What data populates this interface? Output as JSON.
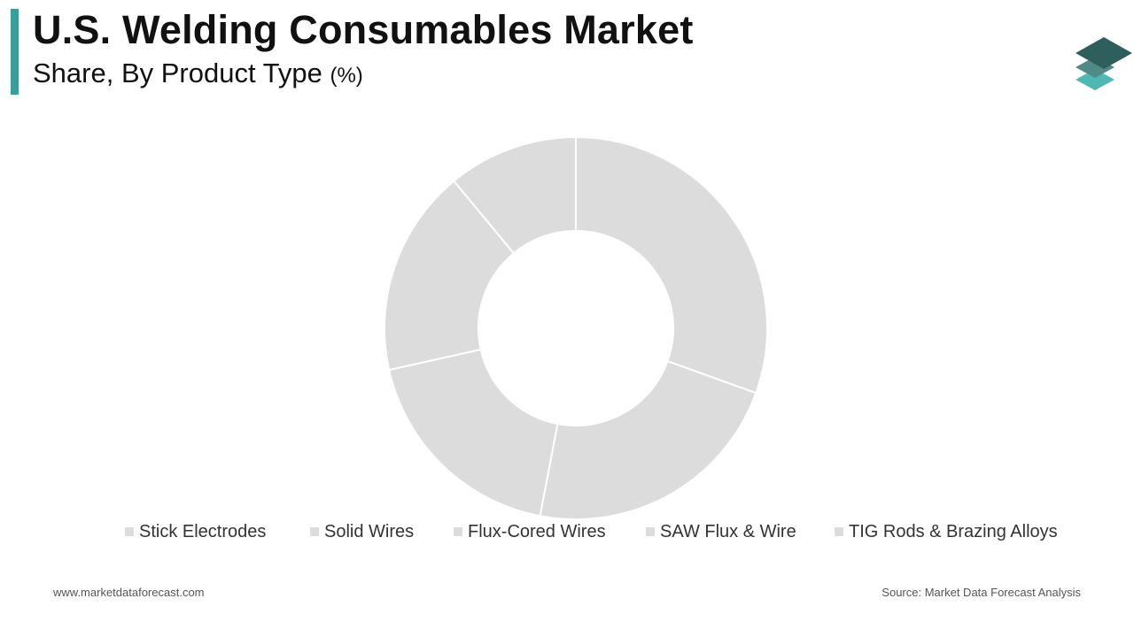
{
  "header": {
    "title": "U.S. Welding Consumables Market",
    "subtitle": "Share, By Product Type",
    "subtitle_unit": "(%)"
  },
  "colors": {
    "accent": "#3a9e9a",
    "slice": "#dcdcdc",
    "slice_border": "#ffffff",
    "legend_swatch": "#dcdcdc",
    "logo_top": "#2f5f5c",
    "logo_mid": "#4f8a86",
    "logo_bottom": "#4fb8b2"
  },
  "logo": {
    "icon": "stacked-layers-icon"
  },
  "chart_data": {
    "type": "pie",
    "donut": true,
    "title": "",
    "categories": [
      "Stick Electrodes",
      "Solid Wires",
      "Flux-Cored Wires",
      "SAW Flux & Wire",
      "TIG Rods & Brazing Alloys"
    ],
    "values": [
      30.5,
      22.5,
      18.5,
      17.5,
      11.0
    ],
    "legend_position": "bottom"
  },
  "legend": [
    {
      "label": "Stick Electrodes"
    },
    {
      "label": "Solid Wires"
    },
    {
      "label": "Flux-Cored Wires"
    },
    {
      "label": "SAW Flux & Wire"
    },
    {
      "label": "TIG Rods & Brazing Alloys"
    }
  ],
  "footer": {
    "website": "www.marketdataforecast.com",
    "source": "Source: Market Data Forecast Analysis"
  }
}
